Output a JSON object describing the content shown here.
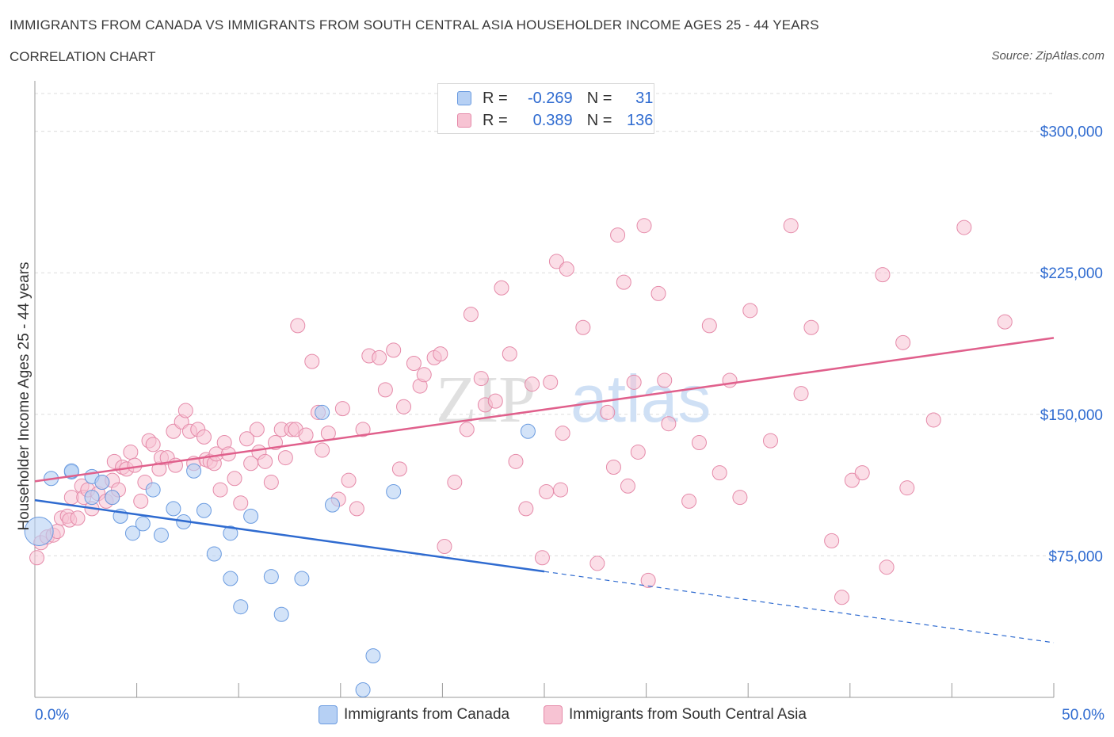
{
  "header": {
    "title": "IMMIGRANTS FROM CANADA VS IMMIGRANTS FROM SOUTH CENTRAL ASIA HOUSEHOLDER INCOME AGES 25 - 44 YEARS",
    "subtitle": "CORRELATION CHART",
    "source": "Source: ZipAtlas.com"
  },
  "legend": {
    "rows": [
      {
        "r_label": "R =",
        "r_value": "-0.269",
        "n_label": "N =",
        "n_value": "31"
      },
      {
        "r_label": "R =",
        "r_value": "0.389",
        "n_label": "N =",
        "n_value": "136"
      }
    ]
  },
  "watermark": {
    "zip": "ZIP",
    "atlas": "atlas"
  },
  "colors": {
    "canada_fill": "#b6d0f4",
    "canada_stroke": "#6a9be0",
    "canada_line": "#2f6bd0",
    "sca_fill": "#f7c3d3",
    "sca_stroke": "#e58aa9",
    "sca_line": "#e0608c",
    "tick_text": "#2f6bd0",
    "grid": "#dcdcdc"
  },
  "chart_data": {
    "type": "scatter",
    "xlabel": "",
    "ylabel": "Householder Income Ages 25 - 44 years",
    "xlim": [
      0,
      50
    ],
    "ylim": [
      0,
      320000
    ],
    "x_tick_labels": [
      "0.0%",
      "50.0%"
    ],
    "y_ticks": [
      75000,
      150000,
      225000,
      300000
    ],
    "y_tick_labels": [
      "$75,000",
      "$150,000",
      "$225,000",
      "$300,000"
    ],
    "grid": true,
    "legend_position": "top-center",
    "series": [
      {
        "name": "Immigrants from Canada",
        "trend": {
          "x0": 0,
          "y0": 104500,
          "x1": 25,
          "y1": 66700,
          "dashed_to_x": 50,
          "dashed_to_y": 29000
        },
        "points": [
          [
            0.2,
            88000
          ],
          [
            0.8,
            116000
          ],
          [
            1.8,
            119500
          ],
          [
            1.8,
            120000
          ],
          [
            2.8,
            106000
          ],
          [
            2.8,
            117000
          ],
          [
            3.3,
            114000
          ],
          [
            3.8,
            106000
          ],
          [
            4.2,
            96000
          ],
          [
            4.8,
            87000
          ],
          [
            5.3,
            92000
          ],
          [
            5.8,
            110000
          ],
          [
            6.2,
            86000
          ],
          [
            6.8,
            100000
          ],
          [
            7.3,
            93000
          ],
          [
            7.8,
            120000
          ],
          [
            8.3,
            99000
          ],
          [
            8.8,
            76000
          ],
          [
            9.6,
            87000
          ],
          [
            9.6,
            63000
          ],
          [
            10.1,
            48000
          ],
          [
            10.6,
            96000
          ],
          [
            11.6,
            64000
          ],
          [
            12.1,
            44000
          ],
          [
            13.1,
            63000
          ],
          [
            14.1,
            151000
          ],
          [
            14.6,
            102000
          ],
          [
            16.1,
            4000
          ],
          [
            16.6,
            22000
          ],
          [
            17.6,
            109000
          ],
          [
            24.2,
            141000
          ]
        ]
      },
      {
        "name": "Immigrants from South Central Asia",
        "trend": {
          "x0": 0,
          "y0": 114500,
          "x1": 50,
          "y1": 190500
        },
        "points": [
          [
            0.1,
            74000
          ],
          [
            0.3,
            82000
          ],
          [
            0.6,
            85000
          ],
          [
            0.9,
            86000
          ],
          [
            1.1,
            88000
          ],
          [
            1.3,
            95000
          ],
          [
            1.6,
            96000
          ],
          [
            1.7,
            94000
          ],
          [
            1.8,
            106000
          ],
          [
            2.1,
            95000
          ],
          [
            2.3,
            112000
          ],
          [
            2.4,
            106000
          ],
          [
            2.6,
            110000
          ],
          [
            2.8,
            100000
          ],
          [
            3.1,
            108000
          ],
          [
            3.3,
            114000
          ],
          [
            3.5,
            104000
          ],
          [
            3.8,
            115000
          ],
          [
            3.8,
            106000
          ],
          [
            3.9,
            125000
          ],
          [
            4.1,
            110000
          ],
          [
            4.3,
            122000
          ],
          [
            4.5,
            121000
          ],
          [
            4.7,
            130000
          ],
          [
            4.9,
            123000
          ],
          [
            5.2,
            104000
          ],
          [
            5.4,
            114000
          ],
          [
            5.6,
            136000
          ],
          [
            5.8,
            134000
          ],
          [
            6.1,
            121000
          ],
          [
            6.2,
            127000
          ],
          [
            6.5,
            127000
          ],
          [
            6.8,
            141000
          ],
          [
            6.9,
            123000
          ],
          [
            7.2,
            146000
          ],
          [
            7.4,
            152000
          ],
          [
            7.6,
            141000
          ],
          [
            7.8,
            124000
          ],
          [
            8.0,
            142000
          ],
          [
            8.3,
            138000
          ],
          [
            8.4,
            126000
          ],
          [
            8.6,
            125000
          ],
          [
            8.8,
            124000
          ],
          [
            8.9,
            129000
          ],
          [
            9.1,
            110000
          ],
          [
            9.3,
            135000
          ],
          [
            9.5,
            129000
          ],
          [
            9.8,
            116000
          ],
          [
            10.1,
            103000
          ],
          [
            10.4,
            137000
          ],
          [
            10.6,
            124000
          ],
          [
            10.9,
            142000
          ],
          [
            11.0,
            130000
          ],
          [
            11.3,
            125000
          ],
          [
            11.6,
            114000
          ],
          [
            11.8,
            135000
          ],
          [
            12.1,
            142000
          ],
          [
            12.3,
            127000
          ],
          [
            12.6,
            142000
          ],
          [
            12.8,
            142000
          ],
          [
            12.9,
            197000
          ],
          [
            13.3,
            139000
          ],
          [
            13.6,
            178000
          ],
          [
            13.9,
            151000
          ],
          [
            14.1,
            131000
          ],
          [
            14.4,
            140000
          ],
          [
            14.9,
            105000
          ],
          [
            15.1,
            153000
          ],
          [
            15.4,
            115000
          ],
          [
            15.8,
            100000
          ],
          [
            16.1,
            142000
          ],
          [
            16.4,
            181000
          ],
          [
            16.9,
            180000
          ],
          [
            17.2,
            163000
          ],
          [
            17.6,
            184000
          ],
          [
            17.9,
            121000
          ],
          [
            18.1,
            154000
          ],
          [
            18.6,
            177000
          ],
          [
            18.9,
            165000
          ],
          [
            19.1,
            171000
          ],
          [
            19.6,
            180000
          ],
          [
            19.9,
            182000
          ],
          [
            20.1,
            80000
          ],
          [
            20.6,
            114000
          ],
          [
            21.2,
            142000
          ],
          [
            21.4,
            203000
          ],
          [
            21.9,
            169000
          ],
          [
            22.1,
            155000
          ],
          [
            22.6,
            157000
          ],
          [
            22.9,
            217000
          ],
          [
            23.3,
            182000
          ],
          [
            23.6,
            125000
          ],
          [
            24.1,
            100000
          ],
          [
            24.4,
            166000
          ],
          [
            24.9,
            74000
          ],
          [
            25.1,
            109000
          ],
          [
            25.3,
            167000
          ],
          [
            25.6,
            231000
          ],
          [
            25.8,
            110000
          ],
          [
            25.9,
            140000
          ],
          [
            26.1,
            227000
          ],
          [
            26.9,
            196000
          ],
          [
            27.6,
            71000
          ],
          [
            28.1,
            151000
          ],
          [
            28.4,
            122000
          ],
          [
            28.6,
            245000
          ],
          [
            28.9,
            220000
          ],
          [
            29.1,
            112000
          ],
          [
            29.4,
            167000
          ],
          [
            29.6,
            130000
          ],
          [
            29.9,
            250000
          ],
          [
            30.1,
            62000
          ],
          [
            30.6,
            214000
          ],
          [
            30.9,
            168000
          ],
          [
            31.1,
            145000
          ],
          [
            32.1,
            104000
          ],
          [
            32.6,
            135000
          ],
          [
            33.1,
            197000
          ],
          [
            33.6,
            119000
          ],
          [
            34.1,
            168000
          ],
          [
            34.6,
            106000
          ],
          [
            35.1,
            205000
          ],
          [
            36.1,
            136000
          ],
          [
            37.1,
            250000
          ],
          [
            37.6,
            161000
          ],
          [
            38.1,
            196000
          ],
          [
            39.1,
            83000
          ],
          [
            39.6,
            53000
          ],
          [
            40.1,
            115000
          ],
          [
            40.6,
            119000
          ],
          [
            41.6,
            224000
          ],
          [
            41.8,
            69000
          ],
          [
            42.6,
            188000
          ],
          [
            42.8,
            111000
          ],
          [
            44.1,
            147000
          ],
          [
            45.6,
            249000
          ],
          [
            47.6,
            199000
          ]
        ]
      }
    ]
  },
  "bottom_legend": {
    "canada_label": "Immigrants from Canada",
    "sca_label": "Immigrants from South Central Asia"
  }
}
